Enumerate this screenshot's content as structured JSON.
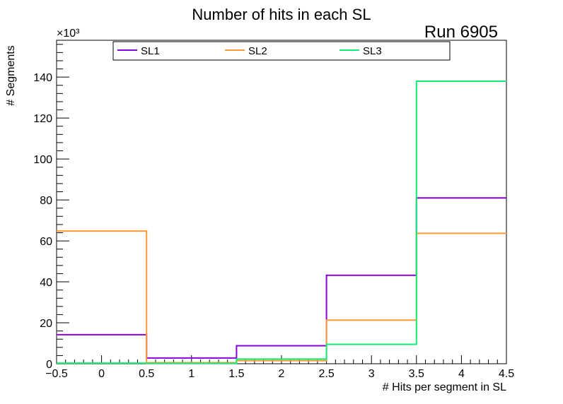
{
  "chart_data": {
    "type": "histogram",
    "title": "Number of hits in each SL",
    "annotation": "Run 6905",
    "xlabel": "# Hits per segment in SL",
    "ylabel": "# Segments",
    "y_exponent_label": "×10³",
    "xlim": [
      -0.5,
      4.5
    ],
    "ylim": [
      0,
      158
    ],
    "y_scale": 1000,
    "bin_edges": [
      -0.5,
      0.5,
      1.5,
      2.5,
      3.5,
      4.5
    ],
    "x_ticks": [
      "−0.5",
      "0",
      "0.5",
      "1",
      "1.5",
      "2",
      "2.5",
      "3",
      "3.5",
      "4",
      "4.5"
    ],
    "y_ticks": [
      "0",
      "20",
      "40",
      "60",
      "80",
      "100",
      "120",
      "140"
    ],
    "legend": {
      "position": "top"
    },
    "series": [
      {
        "name": "SL1",
        "color": "#8800dd",
        "values": [
          14.2,
          2.8,
          8.8,
          43.2,
          81.0
        ]
      },
      {
        "name": "SL2",
        "color": "#ff9933",
        "values": [
          64.8,
          0.5,
          1.5,
          21.3,
          63.7
        ]
      },
      {
        "name": "SL3",
        "color": "#11ee77",
        "values": [
          0.3,
          0.2,
          2.3,
          9.5,
          138.0
        ]
      }
    ]
  }
}
